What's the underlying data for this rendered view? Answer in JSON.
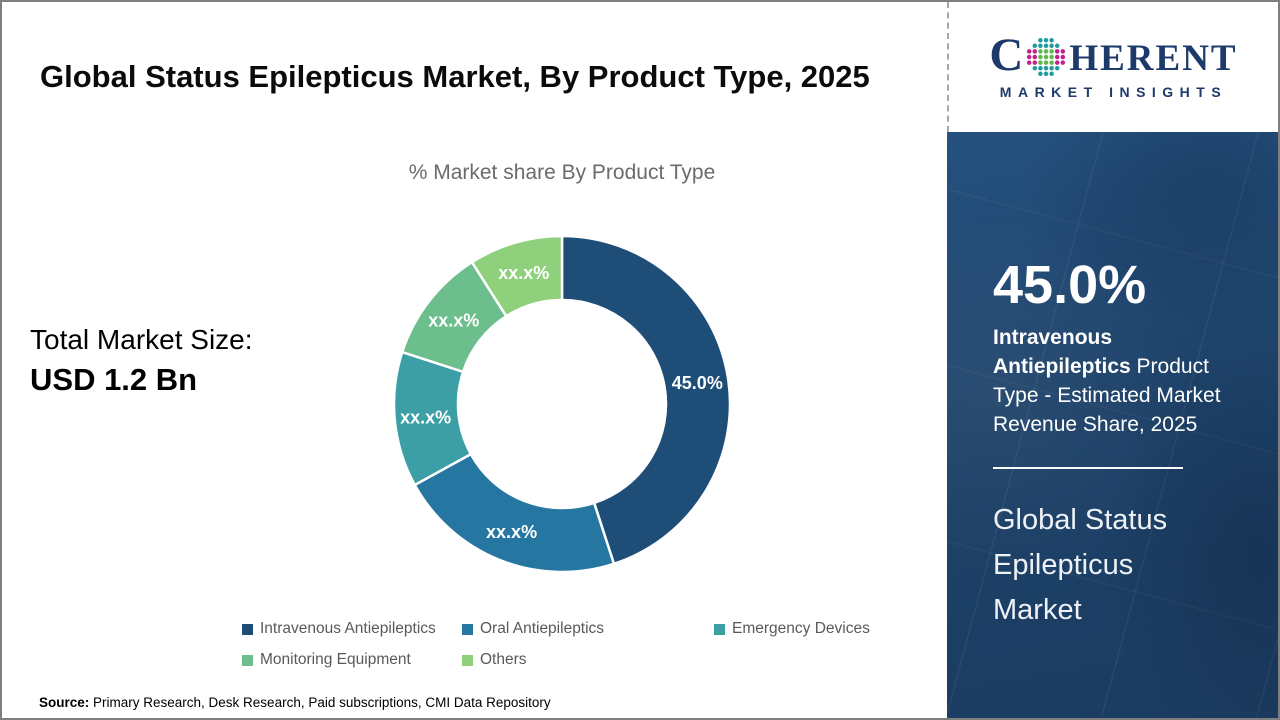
{
  "page": {
    "title": "Global Status Epilepticus Market, By Product Type, 2025",
    "source_label": "Source:",
    "source_text": " Primary Research, Desk Research, Paid subscriptions, CMI Data Repository"
  },
  "logo": {
    "brand_c": "C",
    "brand_rest": "HERENT",
    "subtitle": "MARKET INSIGHTS",
    "colors": {
      "navy": "#1d3a6b",
      "magenta": "#c2208c",
      "teal": "#1f9aa0",
      "green": "#5fb94a"
    }
  },
  "market": {
    "label": "Total Market Size:",
    "value": "USD 1.2 Bn"
  },
  "chart_data": {
    "type": "pie",
    "donut": true,
    "title": "% Market share By Product Type",
    "legend_position": "bottom",
    "start_angle_deg": 0,
    "slices": [
      {
        "name": "Intravenous Antiepileptics",
        "value": 45.0,
        "label": "45.0%",
        "color": "#1e4e78"
      },
      {
        "name": "Oral Antiepileptics",
        "value": 22.0,
        "label": "xx.x%",
        "color": "#2577a1"
      },
      {
        "name": "Emergency Devices",
        "value": 13.0,
        "label": "xx.x%",
        "color": "#3b9fa5"
      },
      {
        "name": "Monitoring Equipment",
        "value": 11.0,
        "label": "xx.x%",
        "color": "#6cbe8d"
      },
      {
        "name": "Others",
        "value": 9.0,
        "label": "xx.x%",
        "color": "#8fd07c"
      }
    ]
  },
  "panel": {
    "stat_value": "45.0%",
    "stat_bold": "Intravenous Antiepileptics",
    "stat_rest": " Product Type - Estimated Market Revenue Share, 2025",
    "title": "Global Status Epilepticus Market",
    "bg": "#1e4269"
  }
}
